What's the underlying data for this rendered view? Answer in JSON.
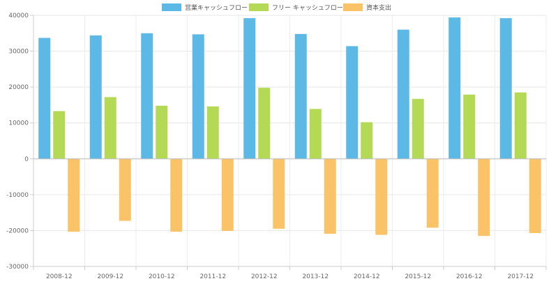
{
  "chart_data": {
    "type": "bar",
    "categories": [
      "2008-12",
      "2009-12",
      "2010-12",
      "2011-12",
      "2012-12",
      "2013-12",
      "2014-12",
      "2015-12",
      "2016-12",
      "2017-12"
    ],
    "series": [
      {
        "name": "営業キャッシュフロー",
        "color": "#5cb8e4",
        "values": [
          33700,
          34400,
          35000,
          34700,
          39200,
          34800,
          31400,
          36000,
          39400,
          39200
        ]
      },
      {
        "name": "フリー キャッシュフロー",
        "color": "#b4d955",
        "values": [
          13300,
          17200,
          14800,
          14600,
          19800,
          13900,
          10200,
          16700,
          17900,
          18500
        ]
      },
      {
        "name": "資本支出",
        "color": "#fac368",
        "values": [
          -20300,
          -17300,
          -20300,
          -20100,
          -19500,
          -20900,
          -21200,
          -19200,
          -21500,
          -20700
        ]
      }
    ],
    "ylim": [
      -30000,
      40000
    ],
    "yticks": [
      40000,
      30000,
      20000,
      10000,
      0,
      -10000,
      -20000,
      -30000
    ],
    "ytick_labels": [
      "40000",
      "30000",
      "20000",
      "10000",
      "0",
      "-10000",
      "-20000",
      "-30000"
    ],
    "grid": true,
    "legend_position": "top-center"
  }
}
